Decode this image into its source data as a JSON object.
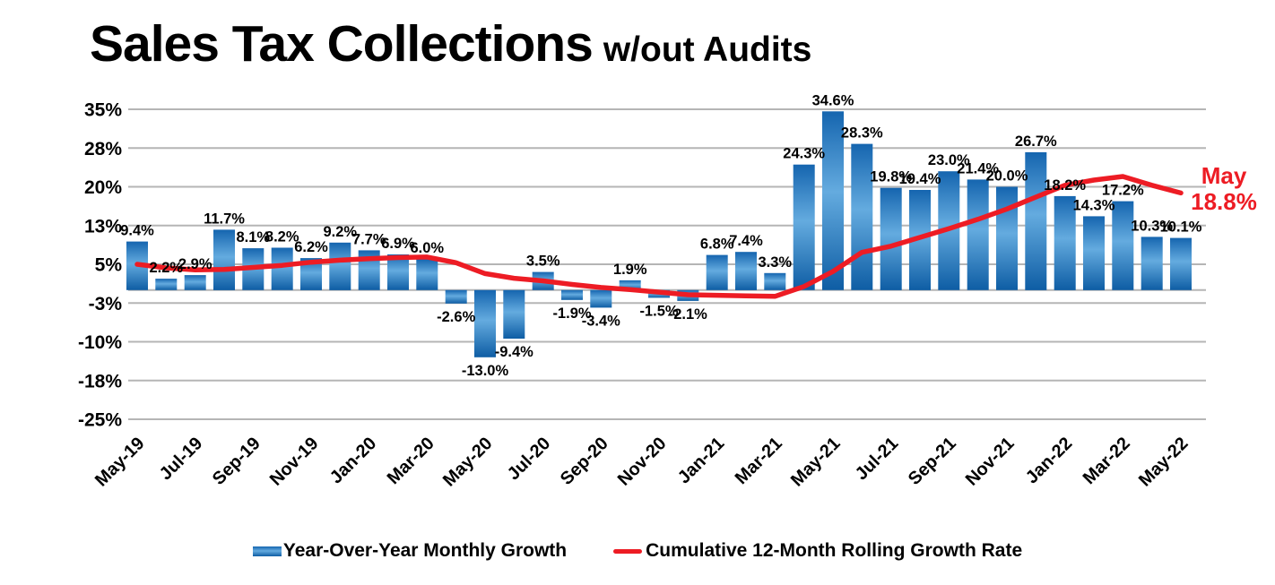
{
  "title": {
    "main": "Sales Tax Collections",
    "suffix": "w/out Audits"
  },
  "annotation": {
    "month": "May",
    "value": "18.8%",
    "color": "#ED1C24"
  },
  "legend": {
    "items": [
      {
        "label": "Year-Over-Year Monthly Growth",
        "swatch": "bar"
      },
      {
        "label": "Cumulative 12-Month Rolling Growth Rate",
        "swatch": "line"
      }
    ]
  },
  "colors": {
    "bar_gradient_top": "#1565AF",
    "bar_gradient_mid": "#64ABDF",
    "bar_gradient_bottom": "#0E5DA4",
    "line_red": "#ED1C24",
    "gridline": "#B5B5B5",
    "text": "#000000",
    "background": "#FFFFFF"
  },
  "chart_data": {
    "type": "bar",
    "combo": "bar + line",
    "title": "Sales Tax Collections w/out Audits",
    "categories": [
      "May-19",
      "Jun-19",
      "Jul-19",
      "Aug-19",
      "Sep-19",
      "Oct-19",
      "Nov-19",
      "Dec-19",
      "Jan-20",
      "Feb-20",
      "Mar-20",
      "Apr-20",
      "May-20",
      "Jun-20",
      "Jul-20",
      "Aug-20",
      "Sep-20",
      "Oct-20",
      "Nov-20",
      "Dec-20",
      "Jan-21",
      "Feb-21",
      "Mar-21",
      "Apr-21",
      "May-21",
      "Jun-21",
      "Jul-21",
      "Aug-21",
      "Sep-21",
      "Oct-21",
      "Nov-21",
      "Dec-21",
      "Jan-22",
      "Feb-22",
      "Mar-22",
      "Apr-22",
      "May-22"
    ],
    "series": [
      {
        "name": "Year-Over-Year Monthly Growth",
        "type": "bar",
        "values": [
          9.4,
          2.2,
          2.9,
          11.7,
          8.1,
          8.2,
          6.2,
          9.2,
          7.7,
          6.9,
          6.0,
          -2.6,
          -13.0,
          -9.4,
          3.5,
          -1.9,
          -3.4,
          1.9,
          -1.5,
          -2.1,
          6.8,
          7.4,
          3.3,
          24.3,
          34.6,
          28.3,
          19.8,
          19.4,
          23.0,
          21.4,
          20.0,
          26.7,
          18.2,
          14.3,
          17.2,
          10.3,
          10.1
        ],
        "labels": [
          "9.4%",
          "2.2%",
          "2.9%",
          "11.7%",
          "8.1%",
          "8.2%",
          "6.2%",
          "9.2%",
          "7.7%",
          "6.9%",
          "6.0%",
          "-2.6%",
          "-13.0%",
          "-9.4%",
          "3.5%",
          "-1.9%",
          "-3.4%",
          "1.9%",
          "-1.5%",
          "-2.1%",
          "6.8%",
          "7.4%",
          "3.3%",
          "24.3%",
          "34.6%",
          "28.3%",
          "19.8%",
          "19.4%",
          "23.0%",
          "21.4%",
          "20.0%",
          "26.7%",
          "18.2%",
          "14.3%",
          "17.2%",
          "10.3%",
          "10.1%"
        ]
      },
      {
        "name": "Cumulative 12-Month Rolling Growth Rate",
        "type": "line",
        "values": [
          5.0,
          4.3,
          3.9,
          4.0,
          4.4,
          4.8,
          5.4,
          5.8,
          6.1,
          6.3,
          6.4,
          5.3,
          3.2,
          2.3,
          1.8,
          1.1,
          0.5,
          0.1,
          -0.4,
          -0.9,
          -1.0,
          -1.1,
          -1.2,
          0.7,
          3.6,
          7.3,
          8.5,
          10.2,
          11.9,
          13.7,
          15.7,
          18.0,
          20.3,
          21.3,
          22.0,
          20.3,
          18.8
        ],
        "end_label": "May 18.8%"
      }
    ],
    "y_axis": {
      "range": [
        -25,
        35
      ],
      "tick_values": [
        35,
        27.5,
        20,
        12.5,
        5,
        -2.5,
        -10,
        -17.5,
        -25
      ],
      "tick_labels": [
        "35%",
        "28%",
        "20%",
        "13%",
        "5%",
        "-3%",
        "-10%",
        "-18%",
        "-25%"
      ],
      "zero_line": true
    },
    "x_axis": {
      "tick_labels": [
        "May-19",
        "Jul-19",
        "Sep-19",
        "Nov-19",
        "Jan-20",
        "Mar-20",
        "May-20",
        "Jul-20",
        "Sep-20",
        "Nov-20",
        "Jan-21",
        "Mar-21",
        "May-21",
        "Jul-21",
        "Sep-21",
        "Nov-21",
        "Jan-22",
        "Mar-22",
        "May-22"
      ],
      "tick_every": 2,
      "label_rotation_deg": -45
    },
    "grid": "horizontal",
    "legend_position": "bottom"
  }
}
